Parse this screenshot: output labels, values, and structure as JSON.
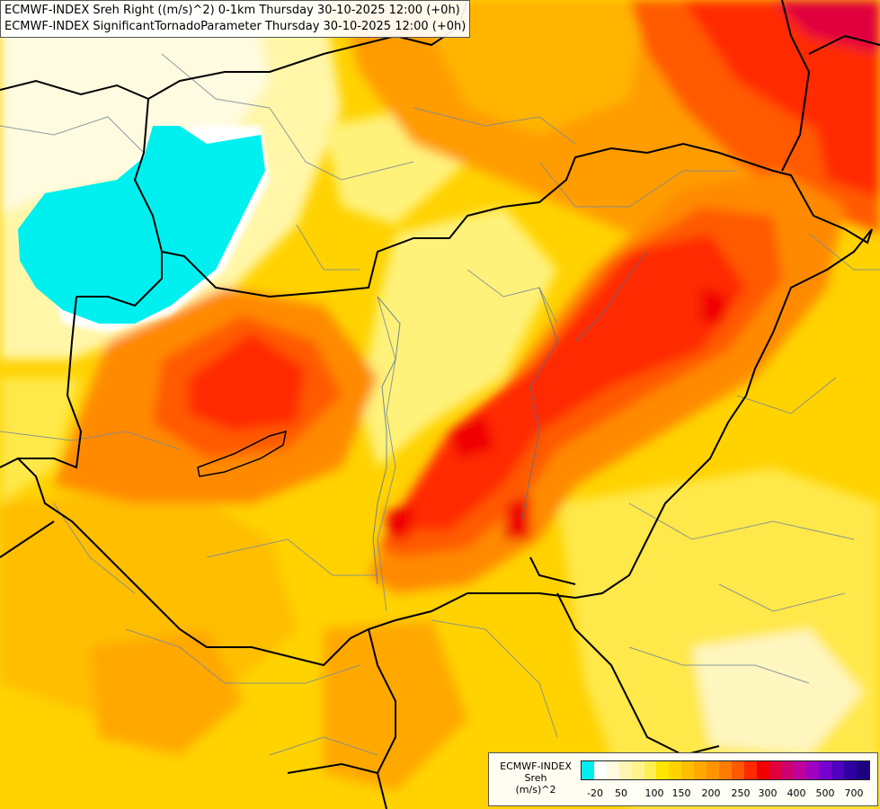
{
  "header": {
    "line1": "ECMWF-INDEX Sreh Right ((m/s)^2) 0-1km Thursday 30-10-2025 12:00 (+0h)",
    "line2": "ECMWF-INDEX SignificantTornadoParameter Thursday 30-10-2025 12:00 (+0h)"
  },
  "legend": {
    "line1": "ECMWF-INDEX",
    "line2": "Sreh",
    "line3": "(m/s)^2",
    "colors": [
      "#00f0f0",
      "#ffffff",
      "#fffbe0",
      "#fff6b3",
      "#fff48c",
      "#ffee55",
      "#ffe600",
      "#ffd200",
      "#ffbe00",
      "#ffa800",
      "#ff9400",
      "#ff7c00",
      "#ff5a00",
      "#ff2a00",
      "#f00000",
      "#e0003c",
      "#cc0070",
      "#c0009c",
      "#a000c0",
      "#7800d0",
      "#5000c0",
      "#3000a0",
      "#1c0080"
    ],
    "ticks": [
      "-20",
      "50",
      "100",
      "150",
      "200",
      "250",
      "300",
      "400",
      "500",
      "700"
    ]
  },
  "chart_data": {
    "type": "heatmap",
    "title": "ECMWF-INDEX Sreh Right ((m/s)^2) 0-1km Thursday 30-10-2025 12:00 (+0h)",
    "subtitle": "ECMWF-INDEX SignificantTornadoParameter Thursday 30-10-2025 12:00 (+0h)",
    "legend_title": "ECMWF-INDEX Sreh (m/s)^2",
    "legend_ticks": [
      -20,
      50,
      100,
      150,
      200,
      250,
      300,
      400,
      500,
      700
    ],
    "legend_placement": "bottom-right"
  }
}
